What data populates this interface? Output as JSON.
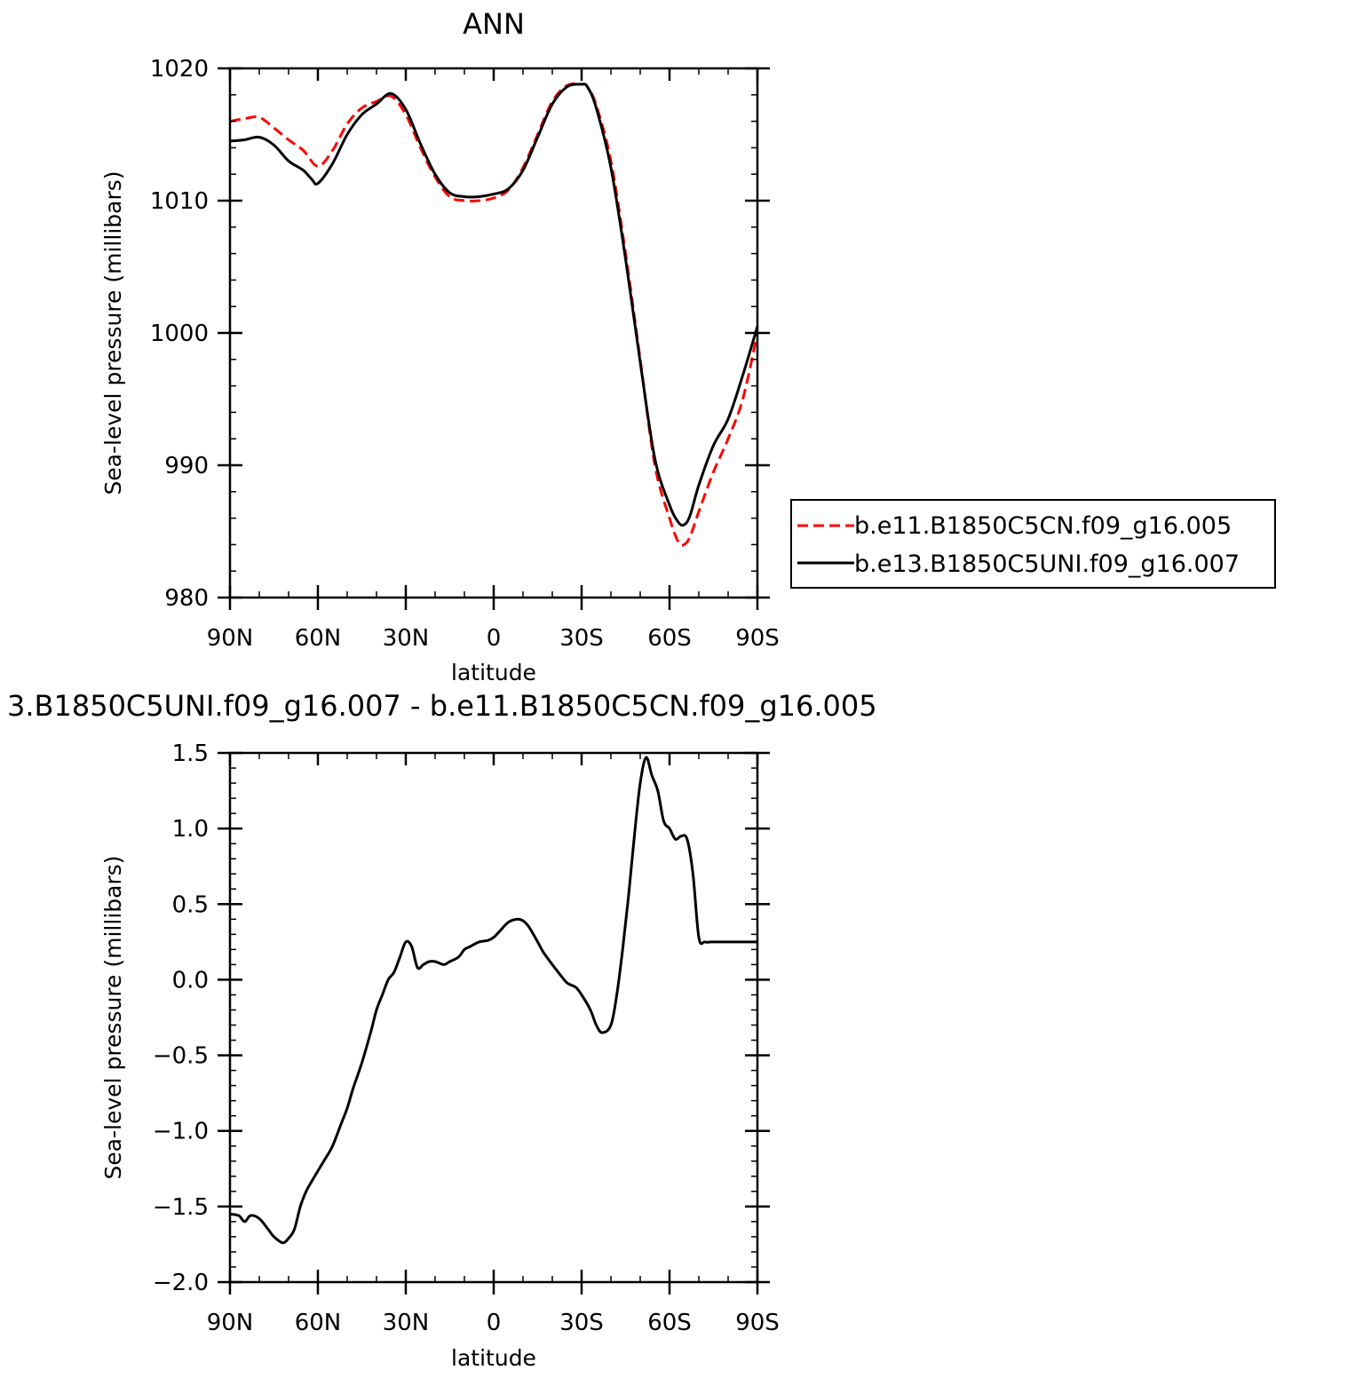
{
  "chart_data": [
    {
      "type": "line",
      "title": "ANN",
      "xlabel": "latitude",
      "ylabel": "Sea-level pressure (millibars)",
      "x_tick_labels": [
        "90N",
        "60N",
        "30N",
        "0",
        "30S",
        "60S",
        "90S"
      ],
      "x_tick_values": [
        90,
        60,
        30,
        0,
        -30,
        -60,
        -90
      ],
      "xlim": [
        90,
        -90
      ],
      "y_tick_labels": [
        "1020",
        "1010",
        "1000",
        "990",
        "980"
      ],
      "ylim": [
        980,
        1020
      ],
      "legend_position": "right",
      "series": [
        {
          "name": "b.e11.B1850C5CN.f09_g16.005",
          "color": "#ff0000",
          "dash": "dashed",
          "x": [
            90,
            85,
            80,
            75,
            70,
            65,
            60,
            55,
            50,
            45,
            40,
            35,
            30,
            25,
            20,
            15,
            10,
            5,
            0,
            -5,
            -10,
            -15,
            -20,
            -25,
            -30,
            -32,
            -35,
            -40,
            -45,
            -50,
            -55,
            -60,
            -63,
            -65,
            -67,
            -70,
            -75,
            -80,
            -85,
            -90
          ],
          "y": [
            1016.0,
            1016.2,
            1016.3,
            1015.5,
            1014.6,
            1013.8,
            1012.6,
            1013.8,
            1015.8,
            1017.0,
            1017.5,
            1017.9,
            1016.5,
            1014.0,
            1011.8,
            1010.3,
            1010.0,
            1010.0,
            1010.2,
            1010.8,
            1012.5,
            1015.0,
            1017.5,
            1018.7,
            1018.8,
            1018.6,
            1017.2,
            1013.0,
            1006.0,
            998.0,
            990.0,
            986.0,
            984.2,
            984.0,
            984.6,
            986.5,
            989.5,
            992.0,
            995.0,
            1000.0
          ]
        },
        {
          "name": "b.e13.B1850C5UNI.f09_g16.007",
          "color": "#000000",
          "dash": "solid",
          "x": [
            90,
            85,
            80,
            75,
            70,
            65,
            62,
            60,
            55,
            50,
            45,
            40,
            35,
            30,
            25,
            20,
            15,
            10,
            5,
            0,
            -5,
            -10,
            -15,
            -20,
            -25,
            -30,
            -32,
            -35,
            -40,
            -45,
            -50,
            -55,
            -60,
            -63,
            -65,
            -67,
            -70,
            -75,
            -80,
            -85,
            -90
          ],
          "y": [
            1014.5,
            1014.6,
            1014.8,
            1014.2,
            1013.0,
            1012.3,
            1011.6,
            1011.3,
            1012.8,
            1015.0,
            1016.5,
            1017.3,
            1018.1,
            1016.9,
            1014.3,
            1012.0,
            1010.6,
            1010.3,
            1010.3,
            1010.5,
            1010.9,
            1012.3,
            1014.8,
            1017.3,
            1018.6,
            1018.8,
            1018.6,
            1017.0,
            1012.5,
            1005.6,
            997.8,
            990.5,
            987.0,
            985.7,
            985.5,
            986.2,
            988.5,
            991.5,
            993.5,
            996.8,
            1000.5
          ]
        }
      ]
    },
    {
      "type": "line",
      "title": "3.B1850C5UNI.f09_g16.007 - b.e11.B1850C5CN.f09_g16.005",
      "xlabel": "latitude",
      "ylabel": "Sea-level pressure (millibars)",
      "x_tick_labels": [
        "90N",
        "60N",
        "30N",
        "0",
        "30S",
        "60S",
        "90S"
      ],
      "x_tick_values": [
        90,
        60,
        30,
        0,
        -30,
        -60,
        -90
      ],
      "xlim": [
        90,
        -90
      ],
      "y_tick_labels": [
        "1.5",
        "1.0",
        "0.5",
        "0.0",
        "−0.5",
        "−1.0",
        "−1.5",
        "−2.0"
      ],
      "ylim": [
        -2.0,
        1.5
      ],
      "series": [
        {
          "color": "#000000",
          "dash": "solid",
          "x": [
            90,
            87,
            85,
            83,
            80,
            77,
            75,
            72,
            70,
            68,
            66,
            64,
            62,
            58,
            55,
            52,
            50,
            48,
            45,
            42,
            40,
            38,
            36,
            34,
            32,
            30,
            28,
            26,
            24,
            22,
            20,
            17,
            15,
            12,
            10,
            8,
            5,
            2,
            0,
            -2,
            -5,
            -8,
            -10,
            -12,
            -15,
            -17,
            -20,
            -22,
            -25,
            -28,
            -30,
            -33,
            -35,
            -37,
            -40,
            -42,
            -44,
            -46,
            -48,
            -50,
            -52,
            -54,
            -56,
            -58,
            -60,
            -62,
            -64,
            -66,
            -68,
            -70,
            -72,
            -74,
            -76,
            -78,
            -80,
            -82,
            -84,
            -86,
            -88,
            -90
          ],
          "y": [
            -1.55,
            -1.56,
            -1.6,
            -1.56,
            -1.58,
            -1.65,
            -1.7,
            -1.74,
            -1.71,
            -1.65,
            -1.5,
            -1.4,
            -1.33,
            -1.2,
            -1.1,
            -0.95,
            -0.85,
            -0.72,
            -0.55,
            -0.35,
            -0.2,
            -0.1,
            0.0,
            0.05,
            0.15,
            0.25,
            0.22,
            0.08,
            0.1,
            0.12,
            0.12,
            0.1,
            0.12,
            0.15,
            0.2,
            0.22,
            0.25,
            0.26,
            0.28,
            0.32,
            0.38,
            0.4,
            0.39,
            0.35,
            0.25,
            0.18,
            0.1,
            0.05,
            -0.02,
            -0.05,
            -0.1,
            -0.2,
            -0.3,
            -0.35,
            -0.3,
            -0.1,
            0.2,
            0.55,
            0.95,
            1.3,
            1.47,
            1.35,
            1.25,
            1.05,
            1.0,
            0.93,
            0.95,
            0.93,
            0.7,
            0.28,
            0.25,
            0.25,
            0.25,
            0.25,
            0.25,
            0.25,
            0.25,
            0.25,
            0.25,
            0.25
          ]
        }
      ]
    }
  ]
}
